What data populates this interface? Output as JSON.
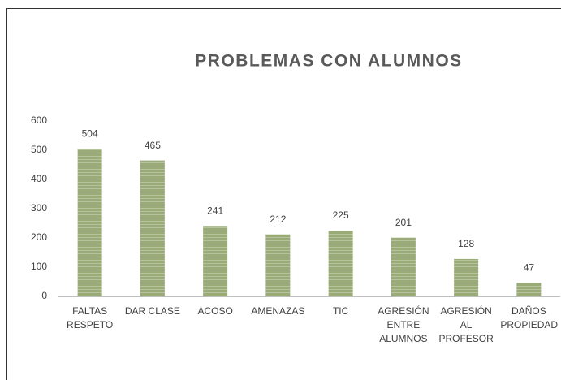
{
  "chart_data": {
    "type": "bar",
    "title": "PROBLEMAS CON ALUMNOS",
    "categories": [
      "FALTAS RESPETO",
      "DAR CLASE",
      "ACOSO",
      "AMENAZAS",
      "TIC",
      "AGRESIÓN ENTRE ALUMNOS",
      "AGRESIÓN AL PROFESOR",
      "DAÑOS PROPIEDAD"
    ],
    "values": [
      504,
      465,
      241,
      212,
      225,
      201,
      128,
      47
    ],
    "color": "#9aab78",
    "ylim": [
      0,
      600
    ],
    "yticks": [
      0,
      100,
      200,
      300,
      400,
      500,
      600
    ],
    "grid": false
  }
}
